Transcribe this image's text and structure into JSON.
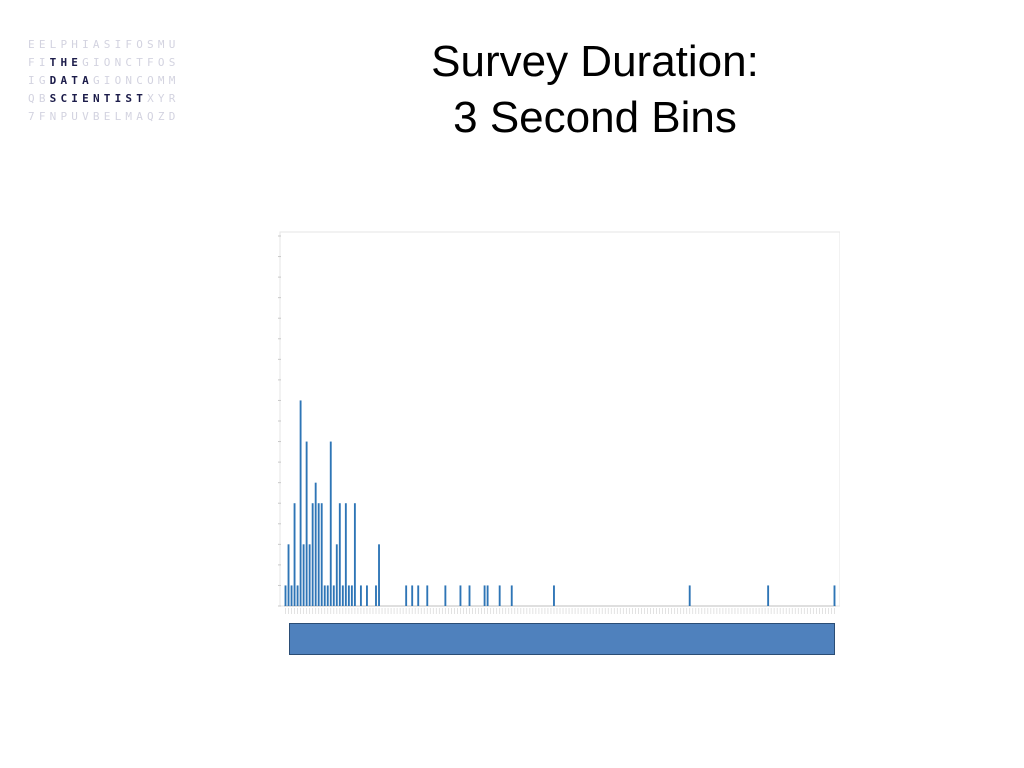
{
  "logo": {
    "rows": [
      [
        "EELPHIASIFOSMU"
      ],
      [
        "FI",
        "THE",
        "GIONCTFOS"
      ],
      [
        "IG",
        "DATA",
        "GIONCOMM"
      ],
      [
        "QB",
        "SCIENTIST",
        "XYR"
      ],
      [
        "7FNPUVBELMAQZD"
      ]
    ]
  },
  "title": {
    "line1": "Survey Duration:",
    "line2": "3 Second Bins"
  },
  "colors": {
    "bar": "#2e75b6",
    "overlay_box": "#4f81bd",
    "axis": "#bfbfbf",
    "logo_highlight": "#1c1c4a",
    "logo_faint": "#d3d3e0"
  },
  "chart_data": {
    "type": "bar",
    "title": "",
    "xlabel": "",
    "ylabel": "",
    "ylim": [
      0,
      18
    ],
    "grid": false,
    "legend": "none",
    "bin_count": 183,
    "x_tick_labels_legible": false,
    "values": [
      1,
      3,
      1,
      5,
      1,
      10,
      3,
      8,
      3,
      5,
      6,
      5,
      5,
      1,
      1,
      8,
      1,
      3,
      5,
      1,
      5,
      1,
      1,
      5,
      0,
      1,
      0,
      1,
      0,
      0,
      1,
      3,
      0,
      0,
      0,
      0,
      0,
      0,
      0,
      0,
      1,
      0,
      1,
      0,
      1,
      0,
      0,
      1,
      0,
      0,
      0,
      0,
      0,
      1,
      0,
      0,
      0,
      0,
      1,
      0,
      0,
      1,
      0,
      0,
      0,
      0,
      1,
      1,
      0,
      0,
      0,
      1,
      0,
      0,
      0,
      1,
      0,
      0,
      0,
      0,
      0,
      0,
      0,
      0,
      0,
      0,
      0,
      0,
      0,
      1,
      0,
      0,
      0,
      0,
      0,
      0,
      0,
      0,
      0,
      0,
      0,
      0,
      0,
      0,
      0,
      0,
      0,
      0,
      0,
      0,
      0,
      0,
      0,
      0,
      0,
      0,
      0,
      0,
      0,
      0,
      0,
      0,
      0,
      0,
      0,
      0,
      0,
      0,
      0,
      0,
      0,
      0,
      0,
      0,
      1,
      0,
      0,
      0,
      0,
      0,
      0,
      0,
      0,
      0,
      0,
      0,
      0,
      0,
      0,
      0,
      0,
      0,
      0,
      0,
      0,
      0,
      0,
      0,
      0,
      0,
      1,
      0,
      0,
      0,
      0,
      0,
      0,
      0,
      0,
      0,
      0,
      0,
      0,
      0,
      0,
      0,
      0,
      0,
      0,
      0,
      0,
      0,
      1
    ]
  }
}
